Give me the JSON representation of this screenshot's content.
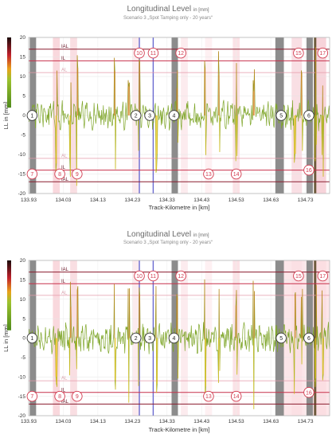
{
  "colors": {
    "signal": "#7fa62a",
    "signal_pos": "#d87a18",
    "signal_neg": "#f2c40f",
    "ial": "#8a1c2e",
    "il": "#c7314b",
    "al": "#e59aa9",
    "grey_band": "#8c8c8c",
    "blue_line": "#6a6ad0",
    "marker": "#d23a4e"
  },
  "charts": [
    {
      "title": "Longitudinal Level",
      "title_unit": "in [mm]",
      "subtitle": "Scenario 3 „Spot Tamping only - 20 years“",
      "xlabel": "Track-Kilometre in [km]",
      "ylabel": "LL in [mm]",
      "threshold_labels": [
        "IAL",
        "IL",
        "AL",
        "AL",
        "IL",
        "IAL"
      ]
    },
    {
      "title": "Longitudinal Level",
      "title_unit": "in [mm]",
      "subtitle": "Scenario 3 „Spot Tamping only - 20 years“",
      "xlabel": "Track-Kilometre in [km]",
      "ylabel": "LL in [mm]",
      "threshold_labels": [
        "IAL",
        "IL",
        "AL",
        "AL",
        "IL",
        "IAL"
      ]
    }
  ],
  "chart_data": [
    {
      "type": "line",
      "title": "Longitudinal Level",
      "xlabel": "Track-Kilometre in [km]",
      "ylabel": "LL in [mm]",
      "xlim": [
        133.93,
        134.8
      ],
      "ylim": [
        -20,
        20
      ],
      "x_ticks": [
        "133.93",
        "134.03",
        "134.13",
        "134.23",
        "134.33",
        "134.43",
        "134.53",
        "134.63",
        "134.73"
      ],
      "y_ticks": [
        20,
        15,
        10,
        5,
        0,
        -5,
        -10,
        -15,
        -20
      ],
      "thresholds": [
        {
          "label": "IAL",
          "value": 17
        },
        {
          "label": "IL",
          "value": 14
        },
        {
          "label": "AL",
          "value": 11
        },
        {
          "label": "AL",
          "value": -11
        },
        {
          "label": "IL",
          "value": -14
        },
        {
          "label": "IAL",
          "value": -17
        }
      ],
      "grey_bands_km": [
        [
          133.94,
          133.95
        ],
        [
          134.35,
          134.36
        ],
        [
          134.65,
          134.67
        ],
        [
          134.74,
          134.74
        ]
      ],
      "blue_lines_km": [
        134.25,
        134.29
      ],
      "markers": [
        {
          "label": "1",
          "x": 133.94,
          "y": 0
        },
        {
          "label": "2",
          "x": 134.24,
          "y": 0
        },
        {
          "label": "3",
          "x": 134.28,
          "y": 0
        },
        {
          "label": "4",
          "x": 134.35,
          "y": 0
        },
        {
          "label": "5",
          "x": 134.66,
          "y": 0
        },
        {
          "label": "6",
          "x": 134.74,
          "y": 0
        },
        {
          "label": "7",
          "x": 133.94,
          "y": -15
        },
        {
          "label": "8",
          "x": 134.02,
          "y": -15
        },
        {
          "label": "9",
          "x": 134.07,
          "y": -15
        },
        {
          "label": "10",
          "x": 134.25,
          "y": 16
        },
        {
          "label": "11",
          "x": 134.29,
          "y": 16
        },
        {
          "label": "12",
          "x": 134.37,
          "y": 16
        },
        {
          "label": "13",
          "x": 134.45,
          "y": -15
        },
        {
          "label": "14",
          "x": 134.53,
          "y": -15
        },
        {
          "label": "15",
          "x": 134.71,
          "y": 16
        },
        {
          "label": "16",
          "x": 134.74,
          "y": -14
        },
        {
          "label": "17",
          "x": 134.78,
          "y": 16
        }
      ]
    },
    {
      "type": "line",
      "title": "Longitudinal Level",
      "xlabel": "Track-Kilometre in [km]",
      "ylabel": "LL in [mm]",
      "xlim": [
        133.93,
        134.8
      ],
      "ylim": [
        -20,
        20
      ],
      "x_ticks": [
        "133.93",
        "134.03",
        "134.13",
        "134.23",
        "134.33",
        "134.43",
        "134.53",
        "134.63",
        "134.73"
      ],
      "y_ticks": [
        20,
        15,
        10,
        5,
        0,
        -5,
        -10,
        -15,
        -20
      ],
      "thresholds": [
        {
          "label": "IAL",
          "value": 17
        },
        {
          "label": "IL",
          "value": 14
        },
        {
          "label": "AL",
          "value": 11
        },
        {
          "label": "AL",
          "value": -11
        },
        {
          "label": "IL",
          "value": -14
        },
        {
          "label": "IAL",
          "value": -17
        }
      ],
      "grey_bands_km": [
        [
          133.94,
          133.95
        ],
        [
          134.35,
          134.36
        ],
        [
          134.65,
          134.67
        ],
        [
          134.74,
          134.74
        ]
      ],
      "blue_lines_km": [
        134.25,
        134.29
      ],
      "markers": [
        {
          "label": "1",
          "x": 133.94,
          "y": 0
        },
        {
          "label": "2",
          "x": 134.24,
          "y": 0
        },
        {
          "label": "3",
          "x": 134.28,
          "y": 0
        },
        {
          "label": "4",
          "x": 134.35,
          "y": 0
        },
        {
          "label": "5",
          "x": 134.66,
          "y": 0
        },
        {
          "label": "6",
          "x": 134.74,
          "y": 0
        },
        {
          "label": "7",
          "x": 133.94,
          "y": -15
        },
        {
          "label": "8",
          "x": 134.02,
          "y": -15
        },
        {
          "label": "9",
          "x": 134.07,
          "y": -15
        },
        {
          "label": "10",
          "x": 134.25,
          "y": 16
        },
        {
          "label": "11",
          "x": 134.29,
          "y": 16
        },
        {
          "label": "12",
          "x": 134.37,
          "y": 16
        },
        {
          "label": "13",
          "x": 134.45,
          "y": -15
        },
        {
          "label": "14",
          "x": 134.53,
          "y": -15
        },
        {
          "label": "15",
          "x": 134.71,
          "y": 16
        },
        {
          "label": "16",
          "x": 134.74,
          "y": -14
        },
        {
          "label": "17",
          "x": 134.78,
          "y": 16
        }
      ]
    }
  ]
}
